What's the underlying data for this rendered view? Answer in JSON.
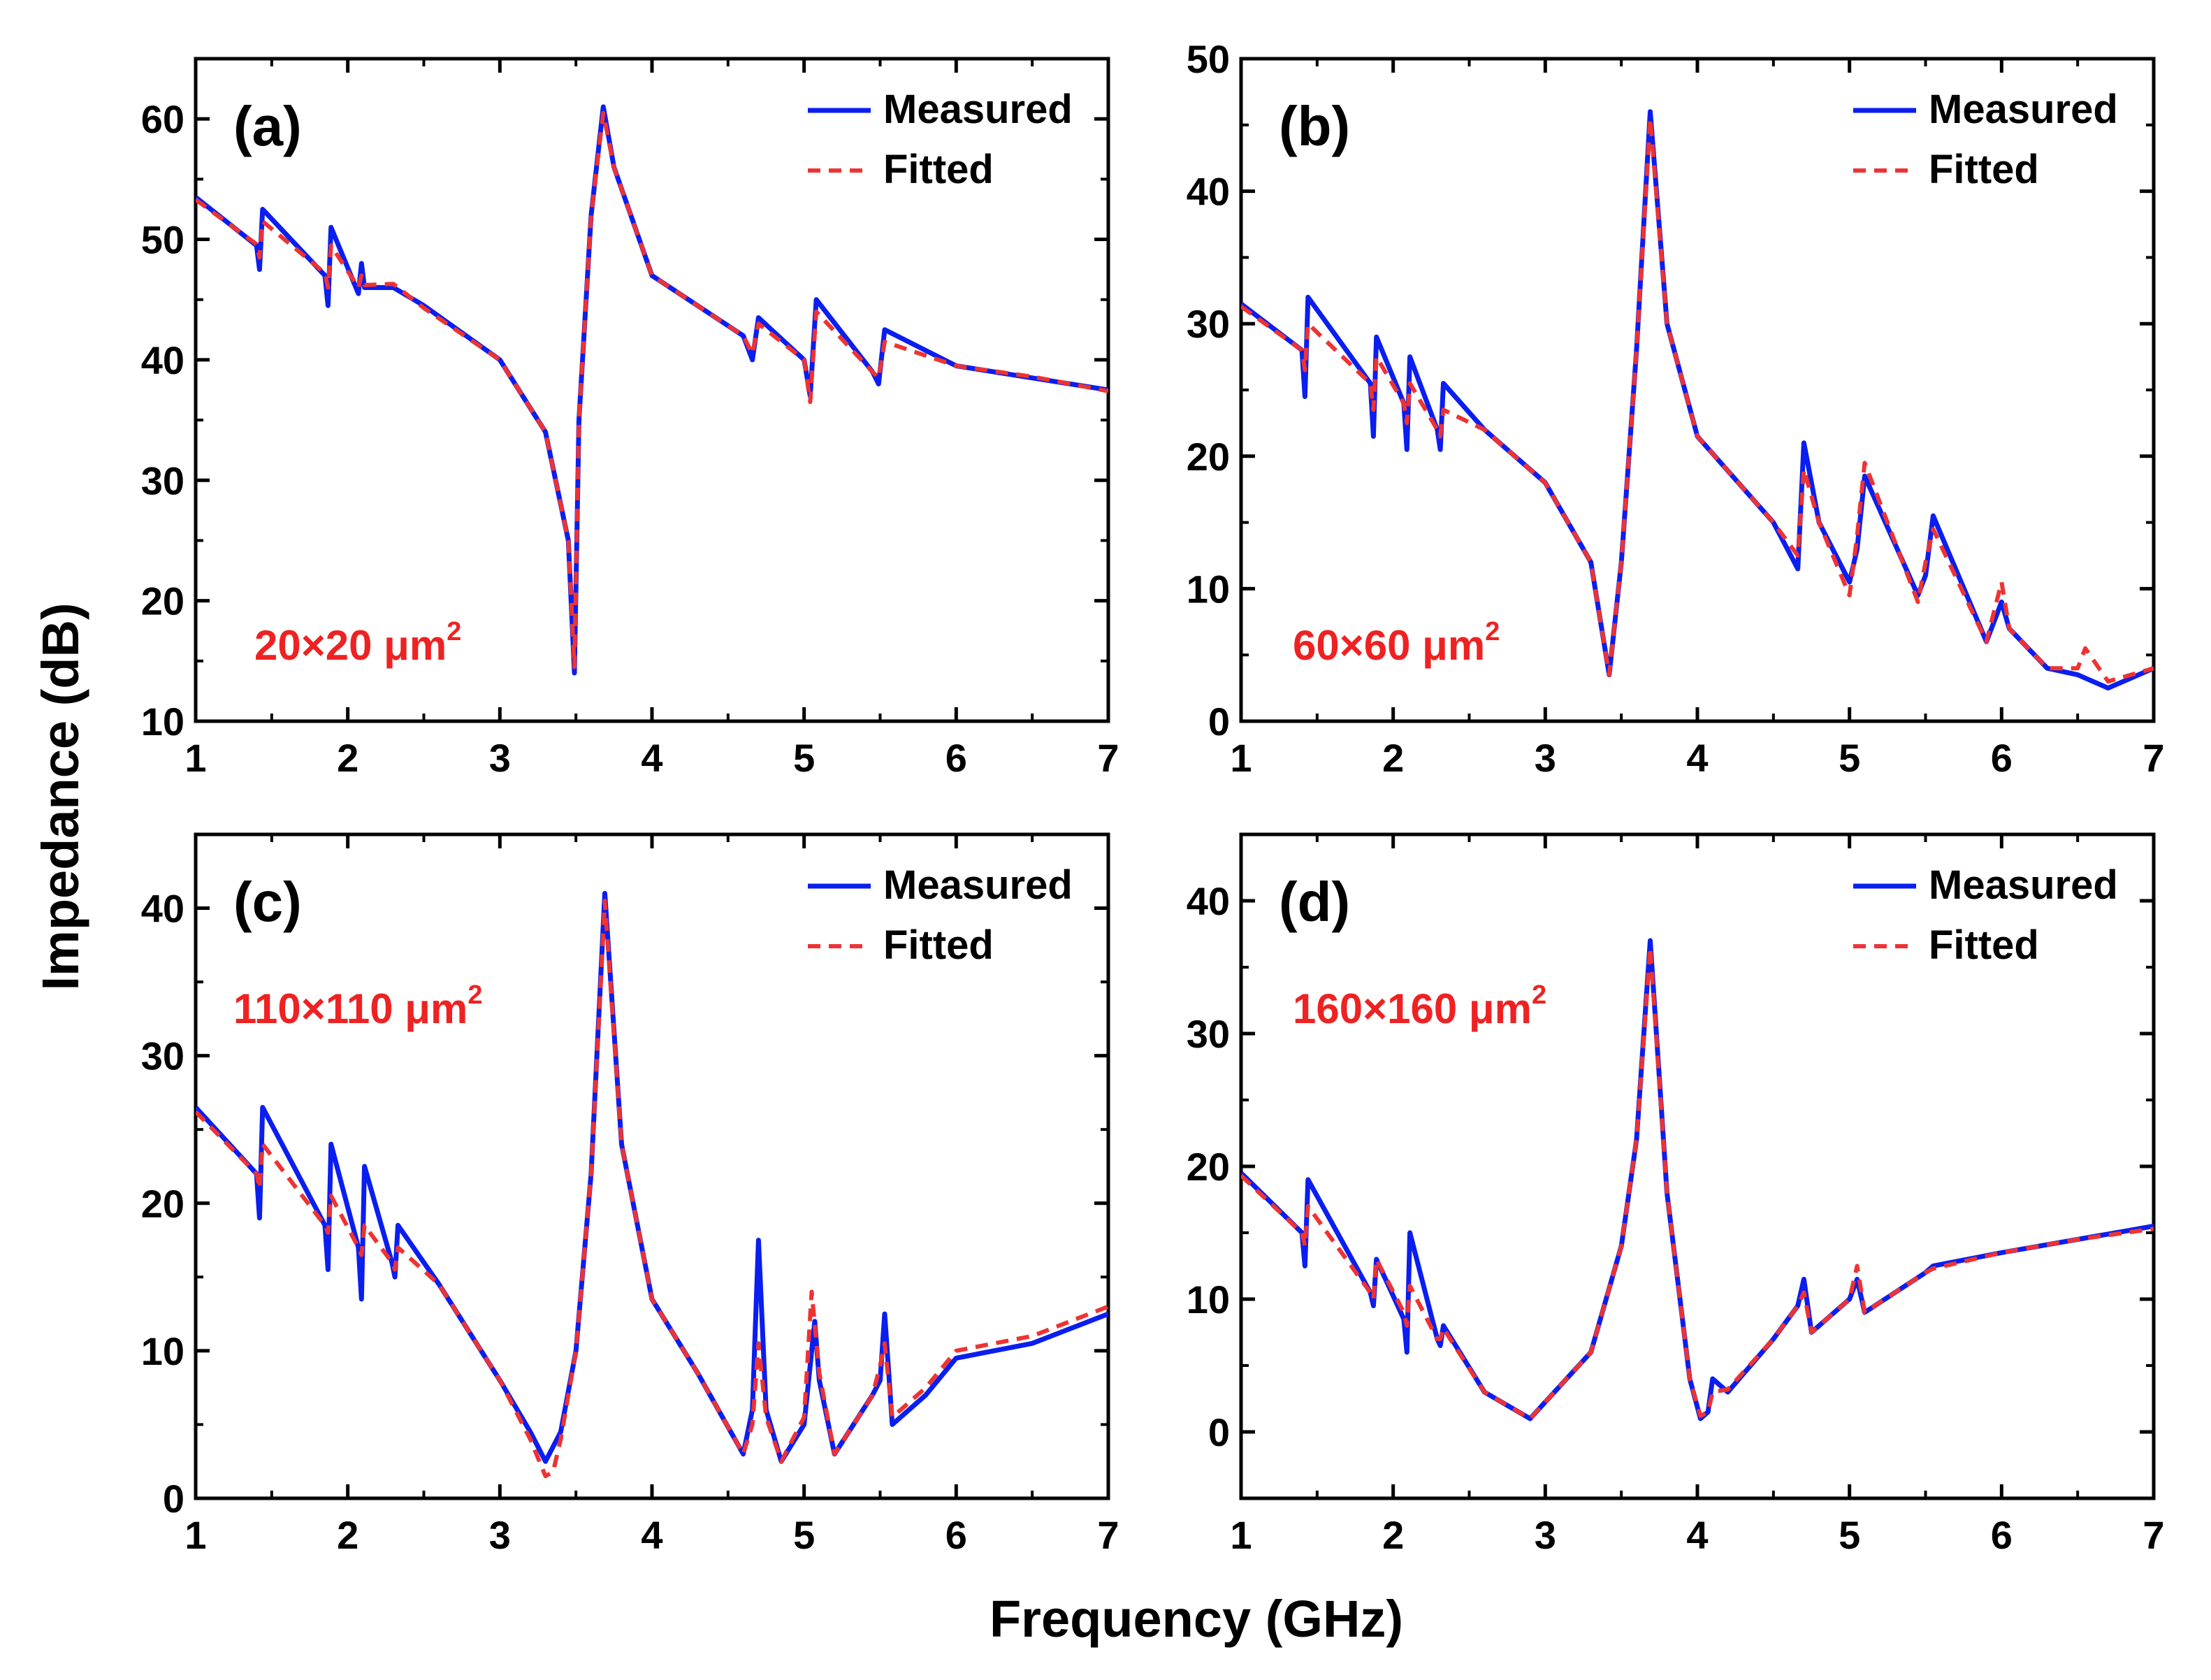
{
  "figure": {
    "ylabel": "Impedance (dB)",
    "xlabel": "Frequency (GHz)"
  },
  "colors": {
    "measured": "#0a1ef0",
    "fitted": "#ee3333",
    "annotation": "#ee2222",
    "axis": "#000000"
  },
  "chart_data": [
    {
      "type": "line",
      "panel": "(a)",
      "annotation": "20×20 μm",
      "annotation_sup": "2",
      "xlim": [
        1,
        7
      ],
      "ylim": [
        10,
        65
      ],
      "xticks": [
        1,
        2,
        3,
        4,
        5,
        6,
        7
      ],
      "yticks": [
        10,
        20,
        30,
        40,
        50,
        60
      ],
      "legend": [
        "Measured",
        "Fitted"
      ],
      "legend_position": "top-right",
      "series": [
        {
          "name": "Measured",
          "style": "solid",
          "x": [
            1.0,
            1.4,
            1.42,
            1.44,
            1.85,
            1.87,
            1.89,
            2.07,
            2.09,
            2.11,
            2.3,
            2.5,
            3.0,
            3.3,
            3.45,
            3.49,
            3.52,
            3.6,
            3.68,
            3.75,
            4.0,
            4.6,
            4.66,
            4.7,
            5.0,
            5.04,
            5.08,
            5.45,
            5.49,
            5.53,
            6.0,
            6.5,
            7.0
          ],
          "y": [
            53.5,
            49.5,
            47.5,
            52.5,
            47.0,
            44.5,
            51.0,
            45.5,
            48.0,
            46.0,
            46.0,
            44.5,
            40.0,
            34.0,
            25.0,
            14.0,
            35.0,
            52.0,
            61.0,
            56.0,
            47.0,
            42.0,
            40.0,
            43.5,
            40.0,
            37.0,
            45.0,
            39.0,
            38.0,
            42.5,
            39.5,
            38.5,
            37.5
          ]
        },
        {
          "name": "Fitted",
          "style": "dashed",
          "x": [
            1.0,
            1.4,
            1.42,
            1.44,
            1.85,
            1.87,
            1.89,
            2.07,
            2.09,
            2.11,
            2.3,
            2.5,
            3.0,
            3.3,
            3.45,
            3.49,
            3.52,
            3.6,
            3.68,
            3.75,
            4.0,
            4.6,
            4.66,
            4.7,
            5.0,
            5.04,
            5.08,
            5.45,
            5.49,
            5.53,
            6.0,
            6.5,
            7.0
          ],
          "y": [
            53.3,
            49.6,
            48.5,
            51.5,
            47.2,
            46.0,
            49.5,
            46.0,
            47.0,
            46.2,
            46.3,
            44.3,
            40.0,
            34.0,
            25.0,
            14.5,
            35.0,
            52.0,
            60.5,
            56.0,
            47.0,
            42.0,
            40.5,
            43.0,
            40.0,
            36.5,
            44.0,
            39.0,
            38.5,
            41.5,
            39.5,
            38.6,
            37.4
          ]
        }
      ]
    },
    {
      "type": "line",
      "panel": "(b)",
      "annotation": "60×60 μm",
      "annotation_sup": "2",
      "xlim": [
        1,
        7
      ],
      "ylim": [
        0,
        50
      ],
      "xticks": [
        1,
        2,
        3,
        4,
        5,
        6,
        7
      ],
      "yticks": [
        0,
        10,
        20,
        30,
        40,
        50
      ],
      "legend": [
        "Measured",
        "Fitted"
      ],
      "legend_position": "top-right",
      "series": [
        {
          "name": "Measured",
          "style": "solid",
          "x": [
            1.0,
            1.4,
            1.42,
            1.44,
            1.85,
            1.87,
            1.89,
            2.07,
            2.09,
            2.11,
            2.29,
            2.31,
            2.33,
            2.6,
            3.0,
            3.3,
            3.42,
            3.5,
            3.6,
            3.69,
            3.8,
            4.0,
            4.5,
            4.66,
            4.7,
            4.8,
            5.0,
            5.05,
            5.1,
            5.45,
            5.5,
            5.55,
            5.9,
            6.0,
            6.05,
            6.3,
            6.5,
            6.7,
            7.0
          ],
          "y": [
            31.5,
            28.0,
            24.5,
            32.0,
            25.5,
            21.5,
            29.0,
            24.0,
            20.5,
            27.5,
            22.0,
            20.5,
            25.5,
            22.0,
            18.0,
            12.0,
            3.5,
            12.0,
            28.0,
            46.0,
            30.0,
            21.5,
            15.0,
            11.5,
            21.0,
            15.0,
            10.5,
            13.0,
            18.5,
            9.5,
            11.0,
            15.5,
            6.0,
            9.0,
            7.0,
            4.0,
            3.5,
            2.5,
            4.0
          ]
        },
        {
          "name": "Fitted",
          "style": "dashed",
          "x": [
            1.0,
            1.4,
            1.42,
            1.44,
            1.85,
            1.87,
            1.89,
            2.07,
            2.09,
            2.11,
            2.29,
            2.31,
            2.33,
            2.6,
            3.0,
            3.3,
            3.42,
            3.5,
            3.6,
            3.69,
            3.8,
            4.0,
            4.5,
            4.66,
            4.7,
            4.8,
            5.0,
            5.05,
            5.1,
            5.45,
            5.5,
            5.55,
            5.9,
            6.0,
            6.05,
            6.3,
            6.5,
            6.55,
            6.7,
            7.0
          ],
          "y": [
            31.3,
            28.0,
            26.5,
            30.0,
            25.5,
            23.5,
            27.5,
            24.0,
            22.5,
            25.5,
            22.0,
            21.5,
            23.5,
            22.0,
            18.0,
            12.0,
            3.5,
            12.0,
            28.0,
            45.5,
            30.0,
            21.5,
            15.0,
            12.5,
            19.0,
            15.0,
            9.5,
            14.0,
            19.5,
            9.0,
            12.0,
            14.5,
            6.0,
            10.5,
            7.0,
            4.0,
            4.0,
            5.5,
            3.0,
            4.0
          ]
        }
      ]
    },
    {
      "type": "line",
      "panel": "(c)",
      "annotation": "110×110 μm",
      "annotation_sup": "2",
      "xlim": [
        1,
        7
      ],
      "ylim": [
        0,
        45
      ],
      "xticks": [
        1,
        2,
        3,
        4,
        5,
        6,
        7
      ],
      "yticks": [
        0,
        10,
        20,
        30,
        40
      ],
      "legend": [
        "Measured",
        "Fitted"
      ],
      "legend_position": "top-right",
      "series": [
        {
          "name": "Measured",
          "style": "solid",
          "x": [
            1.0,
            1.4,
            1.42,
            1.44,
            1.85,
            1.87,
            1.89,
            2.07,
            2.09,
            2.11,
            2.29,
            2.31,
            2.33,
            2.6,
            3.0,
            3.2,
            3.3,
            3.4,
            3.5,
            3.6,
            3.69,
            3.8,
            4.0,
            4.3,
            4.6,
            4.66,
            4.7,
            4.75,
            4.85,
            5.0,
            5.07,
            5.1,
            5.2,
            5.45,
            5.5,
            5.53,
            5.58,
            5.8,
            6.0,
            6.5,
            7.0
          ],
          "y": [
            26.5,
            22.0,
            19.0,
            26.5,
            18.5,
            15.5,
            24.0,
            17.0,
            13.5,
            22.5,
            16.0,
            15.0,
            18.5,
            14.5,
            8.0,
            4.5,
            2.5,
            4.5,
            10.0,
            22.0,
            41.0,
            24.0,
            13.5,
            8.5,
            3.0,
            6.0,
            17.5,
            6.0,
            2.5,
            5.0,
            12.0,
            8.0,
            3.0,
            7.0,
            8.0,
            12.5,
            5.0,
            7.0,
            9.5,
            10.5,
            12.5
          ]
        },
        {
          "name": "Fitted",
          "style": "dashed",
          "x": [
            1.0,
            1.4,
            1.42,
            1.44,
            1.85,
            1.87,
            1.89,
            2.07,
            2.09,
            2.11,
            2.29,
            2.31,
            2.33,
            2.6,
            3.0,
            3.2,
            3.3,
            3.35,
            3.4,
            3.5,
            3.6,
            3.69,
            3.8,
            4.0,
            4.3,
            4.6,
            4.66,
            4.7,
            4.75,
            4.85,
            5.0,
            5.05,
            5.1,
            5.2,
            5.45,
            5.5,
            5.53,
            5.58,
            5.8,
            6.0,
            6.5,
            7.0
          ],
          "y": [
            26.2,
            22.0,
            21.0,
            24.0,
            18.5,
            18.0,
            20.5,
            17.0,
            16.5,
            18.5,
            16.0,
            15.5,
            17.0,
            14.5,
            8.0,
            4.0,
            1.5,
            1.8,
            4.0,
            10.0,
            22.0,
            40.5,
            24.0,
            13.5,
            8.5,
            3.0,
            5.0,
            10.5,
            5.5,
            2.5,
            5.5,
            14.0,
            8.5,
            3.0,
            7.0,
            9.0,
            10.5,
            5.5,
            7.5,
            10.0,
            11.0,
            13.0
          ]
        }
      ]
    },
    {
      "type": "line",
      "panel": "(d)",
      "annotation": "160×160 μm",
      "annotation_sup": "2",
      "xlim": [
        1,
        7
      ],
      "ylim": [
        -5,
        45
      ],
      "xticks": [
        1,
        2,
        3,
        4,
        5,
        6,
        7
      ],
      "yticks": [
        0,
        10,
        20,
        30,
        40
      ],
      "legend": [
        "Measured",
        "Fitted"
      ],
      "legend_position": "top-right",
      "series": [
        {
          "name": "Measured",
          "style": "solid",
          "x": [
            1.0,
            1.4,
            1.42,
            1.44,
            1.85,
            1.87,
            1.89,
            2.07,
            2.09,
            2.11,
            2.29,
            2.31,
            2.33,
            2.6,
            2.9,
            3.3,
            3.5,
            3.6,
            3.69,
            3.8,
            3.95,
            4.02,
            4.07,
            4.1,
            4.2,
            4.5,
            4.66,
            4.7,
            4.75,
            5.0,
            5.05,
            5.1,
            5.5,
            5.55,
            6.0,
            6.5,
            7.0
          ],
          "y": [
            19.5,
            15.0,
            12.5,
            19.0,
            10.5,
            9.5,
            13.0,
            8.5,
            6.0,
            15.0,
            7.0,
            6.5,
            8.0,
            3.0,
            1.0,
            6.0,
            14.0,
            22.0,
            37.0,
            18.0,
            4.0,
            1.0,
            1.5,
            4.0,
            3.0,
            7.0,
            9.5,
            11.5,
            7.5,
            10.0,
            11.5,
            9.0,
            12.0,
            12.5,
            13.5,
            14.5,
            15.5
          ]
        },
        {
          "name": "Fitted",
          "style": "dashed",
          "x": [
            1.0,
            1.4,
            1.42,
            1.44,
            1.85,
            1.87,
            1.89,
            2.07,
            2.09,
            2.11,
            2.29,
            2.31,
            2.33,
            2.6,
            2.9,
            3.3,
            3.5,
            3.6,
            3.69,
            3.8,
            3.95,
            4.02,
            4.07,
            4.1,
            4.2,
            4.5,
            4.66,
            4.7,
            4.75,
            5.0,
            5.05,
            5.1,
            5.5,
            5.55,
            6.0,
            6.5,
            7.0
          ],
          "y": [
            19.3,
            15.0,
            14.0,
            17.0,
            10.5,
            10.0,
            13.0,
            9.0,
            8.0,
            11.0,
            7.0,
            7.0,
            7.8,
            3.0,
            1.0,
            6.0,
            14.0,
            22.0,
            36.5,
            18.0,
            4.0,
            1.2,
            1.5,
            3.0,
            3.2,
            7.0,
            9.5,
            10.5,
            7.5,
            10.0,
            12.5,
            9.0,
            12.0,
            12.3,
            13.5,
            14.5,
            15.3
          ]
        }
      ]
    }
  ]
}
